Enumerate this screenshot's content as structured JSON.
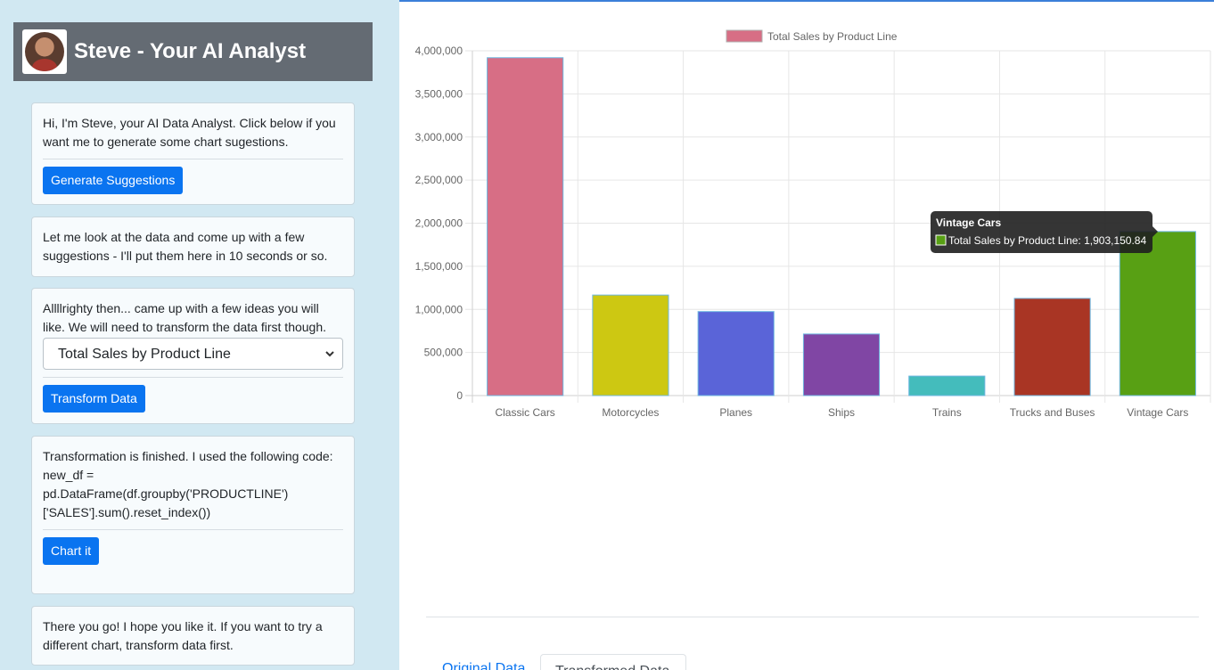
{
  "header": {
    "title": "Steve - Your AI Analyst",
    "avatar": "avatar-photo"
  },
  "cards": {
    "c1": {
      "text": "Hi, I'm Steve, your AI Data Analyst. Click below if you want me to generate some chart sugestions.",
      "button": "Generate Suggestions"
    },
    "c2": {
      "text": "Let me look at the data and come up with a few suggestions - I'll put them here in 10 seconds or so."
    },
    "c3": {
      "text": "Allllrighty then... came up with a few ideas you will like. We will need to transform the data first though.",
      "select_value": "Total Sales by Product Line",
      "button": "Transform Data"
    },
    "c4": {
      "text": "Transformation is finished. I used the following code:",
      "code": "new_df =\npd.DataFrame(df.groupby('PRODUCTLINE')\n['SALES'].sum().reset_index())",
      "button": "Chart it"
    },
    "c5": {
      "text": "There you go! I hope you like it. If you want to try a different chart, transform data first."
    }
  },
  "tabs": {
    "original": "Original Data",
    "transformed": "Transformed Data"
  },
  "chart_data": {
    "type": "bar",
    "categories": [
      "Classic Cars",
      "Motorcycles",
      "Planes",
      "Ships",
      "Trains",
      "Trucks and Buses",
      "Vintage Cars"
    ],
    "series": [
      {
        "name": "Total Sales by Product Line",
        "values": [
          3919615.66,
          1166388.34,
          975003.57,
          714437.13,
          226243.47,
          1127789.84,
          1903150.84
        ]
      }
    ],
    "colors": [
      "#d76e85",
      "#cdc812",
      "#5a64d8",
      "#8046a4",
      "#44bcbc",
      "#a93524",
      "#58a014"
    ],
    "yticks": [
      "0",
      "500,000",
      "1,000,000",
      "1,500,000",
      "2,000,000",
      "2,500,000",
      "3,000,000",
      "3,500,000",
      "4,000,000"
    ],
    "ylim": [
      0,
      4000000
    ],
    "legend": "top",
    "grid": true,
    "tooltip": {
      "title": "Vintage Cars",
      "label": "Total Sales by Product Line: 1,903,150.84",
      "color": "#58a014"
    }
  }
}
